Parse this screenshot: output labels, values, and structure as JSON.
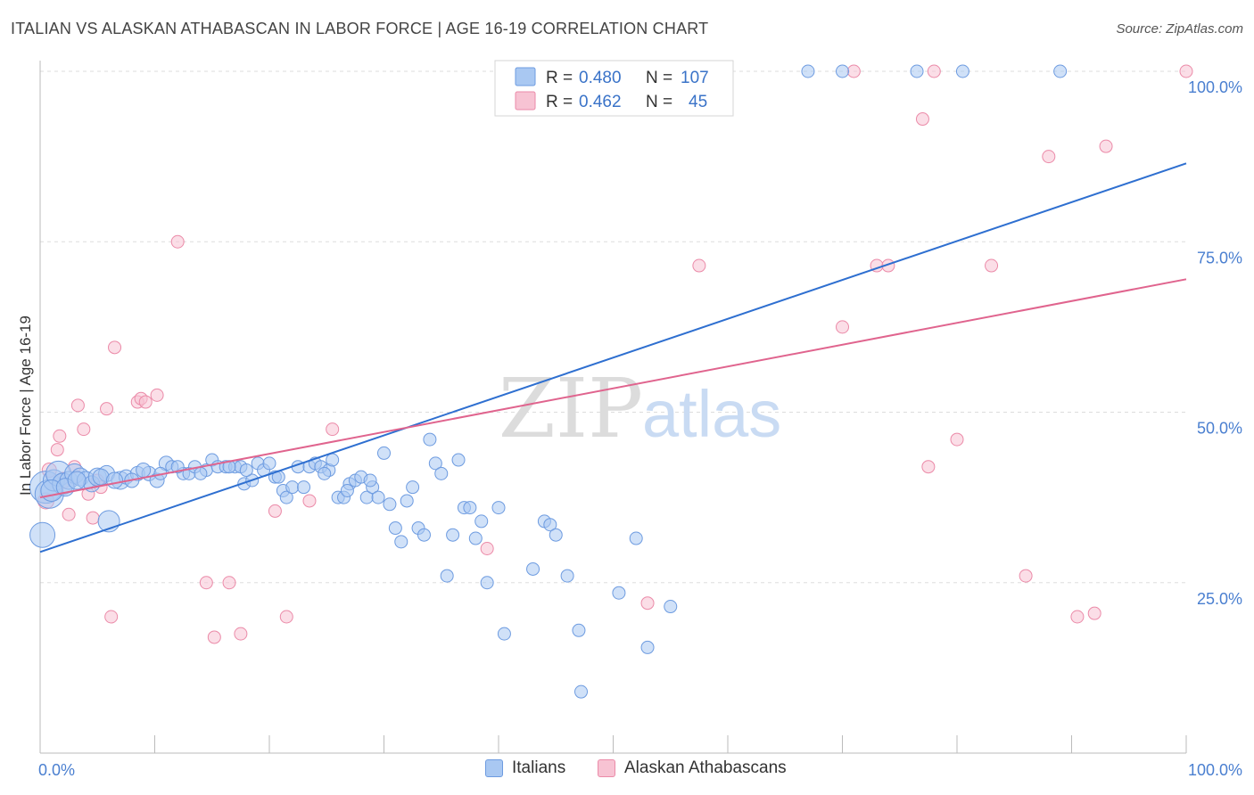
{
  "header": {
    "title": "ITALIAN VS ALASKAN ATHABASCAN IN LABOR FORCE | AGE 16-19 CORRELATION CHART",
    "source": "Source: ZipAtlas.com"
  },
  "watermark": {
    "zip": "ZIP",
    "atlas": "atlas"
  },
  "colors": {
    "blue_fill": "#a9c8f2",
    "blue_stroke": "#6d9be0",
    "blue_line": "#2e6fd0",
    "pink_fill": "#f7c3d3",
    "pink_stroke": "#eb8aa8",
    "pink_line": "#e0648e",
    "grid": "#dddddd",
    "axis_text": "#4a7fd0"
  },
  "stats_legend": [
    {
      "r_label": "R =",
      "r_value": "0.480",
      "n_label": "N =",
      "n_value": "107"
    },
    {
      "r_label": "R =",
      "r_value": "0.462",
      "n_label": "N =",
      "n_value": "45"
    }
  ],
  "bottom_legend": [
    "Italians",
    "Alaskan Athabascans"
  ],
  "chart_data": {
    "type": "scatter",
    "title": "ITALIAN VS ALASKAN ATHABASCAN IN LABOR FORCE | AGE 16-19 CORRELATION CHART",
    "xlabel": "",
    "ylabel": "In Labor Force | Age 16-19",
    "xlim": [
      0,
      100
    ],
    "ylim": [
      0,
      100
    ],
    "x_tick_labels": [
      "0.0%",
      "100.0%"
    ],
    "y_tick_labels": [
      "25.0%",
      "50.0%",
      "75.0%",
      "100.0%"
    ],
    "y_ticks": [
      25,
      50,
      75,
      100
    ],
    "grid": true,
    "legend_placement": "top-center",
    "series": [
      {
        "name": "Italians",
        "r": 0.48,
        "n": 107,
        "trend": [
          [
            0,
            29.5
          ],
          [
            100,
            86.5
          ]
        ],
        "points": [
          [
            0.2,
            32,
            14
          ],
          [
            0.5,
            39,
            18
          ],
          [
            0.8,
            38,
            16
          ],
          [
            1.2,
            40,
            12
          ],
          [
            1.6,
            41,
            14
          ],
          [
            2.0,
            39.5,
            12
          ],
          [
            2.5,
            40,
            10
          ],
          [
            3.0,
            41,
            11
          ],
          [
            3.5,
            40.5,
            10
          ],
          [
            4.0,
            40,
            10
          ],
          [
            4.5,
            39.5,
            9
          ],
          [
            5.0,
            40.5,
            10
          ],
          [
            5.8,
            41,
            9
          ],
          [
            6.0,
            34,
            12
          ],
          [
            7.0,
            40,
            10
          ],
          [
            7.5,
            40.5,
            8
          ],
          [
            8.5,
            41,
            8
          ],
          [
            9.5,
            41,
            8
          ],
          [
            10.2,
            40,
            8
          ],
          [
            11.0,
            42.5,
            8
          ],
          [
            11.5,
            42,
            7
          ],
          [
            12.5,
            41,
            7
          ],
          [
            13.0,
            41,
            7
          ],
          [
            13.5,
            42,
            7
          ],
          [
            14.5,
            41.5,
            7
          ],
          [
            15.0,
            43,
            7
          ],
          [
            15.5,
            42,
            7
          ],
          [
            16.2,
            42,
            7
          ],
          [
            17.0,
            42,
            7
          ],
          [
            17.5,
            42,
            7
          ],
          [
            17.8,
            39.5,
            7
          ],
          [
            18.5,
            40,
            7
          ],
          [
            19.0,
            42.5,
            7
          ],
          [
            19.5,
            41.5,
            7
          ],
          [
            20.0,
            42.5,
            7
          ],
          [
            20.5,
            40.5,
            7
          ],
          [
            21.2,
            38.5,
            7
          ],
          [
            21.5,
            37.5,
            7
          ],
          [
            22.0,
            39,
            7
          ],
          [
            22.5,
            42,
            7
          ],
          [
            23.0,
            39,
            7
          ],
          [
            23.5,
            42,
            7
          ],
          [
            24.0,
            42.5,
            7
          ],
          [
            24.5,
            42,
            7
          ],
          [
            25.2,
            41.5,
            7
          ],
          [
            25.5,
            43,
            7
          ],
          [
            26.0,
            37.5,
            7
          ],
          [
            26.5,
            37.5,
            7
          ],
          [
            27.0,
            39.5,
            7
          ],
          [
            27.5,
            40,
            7
          ],
          [
            28.0,
            40.5,
            7
          ],
          [
            28.5,
            37.5,
            7
          ],
          [
            29.0,
            39,
            7
          ],
          [
            29.5,
            37.5,
            7
          ],
          [
            30.0,
            44,
            7
          ],
          [
            31.0,
            33,
            7
          ],
          [
            31.5,
            31,
            7
          ],
          [
            32.0,
            37,
            7
          ],
          [
            32.5,
            39,
            7
          ],
          [
            33.0,
            33,
            7
          ],
          [
            33.5,
            32,
            7
          ],
          [
            34.0,
            46,
            7
          ],
          [
            34.5,
            42.5,
            7
          ],
          [
            35.0,
            41,
            7
          ],
          [
            35.5,
            26,
            7
          ],
          [
            36.0,
            32,
            7
          ],
          [
            36.5,
            43,
            7
          ],
          [
            37.0,
            36,
            7
          ],
          [
            37.5,
            36,
            7
          ],
          [
            38.0,
            31.5,
            7
          ],
          [
            38.5,
            34,
            7
          ],
          [
            39.0,
            25,
            7
          ],
          [
            40.0,
            36,
            7
          ],
          [
            40.5,
            17.5,
            7
          ],
          [
            41.0,
            94.5,
            7
          ],
          [
            43.0,
            27,
            7
          ],
          [
            44.0,
            34,
            7
          ],
          [
            44.5,
            33.5,
            7
          ],
          [
            45.0,
            32,
            7
          ],
          [
            46.0,
            26,
            7
          ],
          [
            47.0,
            18,
            7
          ],
          [
            47.2,
            9,
            7
          ],
          [
            50.5,
            23.5,
            7
          ],
          [
            52.0,
            31.5,
            7
          ],
          [
            53.0,
            15.5,
            7
          ],
          [
            55.0,
            21.5,
            7
          ],
          [
            41.5,
            100,
            7
          ],
          [
            44.0,
            100,
            7
          ],
          [
            48.0,
            100,
            7
          ],
          [
            52.0,
            100,
            7
          ],
          [
            56.0,
            100,
            7
          ],
          [
            67.0,
            100,
            7
          ],
          [
            70.0,
            100,
            7
          ],
          [
            76.5,
            100,
            7
          ],
          [
            80.5,
            100,
            7
          ],
          [
            89.0,
            100,
            7
          ],
          [
            1.0,
            38.5,
            12
          ],
          [
            2.2,
            39,
            10
          ],
          [
            3.2,
            40,
            10
          ],
          [
            5.3,
            40.5,
            9
          ],
          [
            6.5,
            40,
            9
          ],
          [
            8.0,
            40,
            8
          ],
          [
            9.0,
            41.5,
            8
          ],
          [
            10.5,
            41,
            7
          ],
          [
            12.0,
            42,
            7
          ],
          [
            14.0,
            41,
            7
          ],
          [
            16.5,
            42,
            7
          ],
          [
            18.0,
            41.5,
            7
          ],
          [
            20.8,
            40.5,
            7
          ],
          [
            24.8,
            41,
            7
          ],
          [
            26.8,
            38.5,
            7
          ],
          [
            28.8,
            40,
            7
          ],
          [
            30.5,
            36.5,
            7
          ]
        ]
      },
      {
        "name": "Alaskan Athabascans",
        "r": 0.462,
        "n": 45,
        "trend": [
          [
            0,
            37.5
          ],
          [
            100,
            69.5
          ]
        ],
        "points": [
          [
            0.5,
            37,
            9
          ],
          [
            0.8,
            41.5,
            8
          ],
          [
            1.5,
            44.5,
            7
          ],
          [
            1.7,
            46.5,
            7
          ],
          [
            2.0,
            40,
            9
          ],
          [
            2.5,
            35,
            7
          ],
          [
            3.0,
            42,
            7
          ],
          [
            3.3,
            51,
            7
          ],
          [
            3.8,
            47.5,
            7
          ],
          [
            4.2,
            38,
            7
          ],
          [
            4.6,
            34.5,
            7
          ],
          [
            5.0,
            40,
            7
          ],
          [
            5.3,
            39,
            7
          ],
          [
            5.8,
            50.5,
            7
          ],
          [
            6.2,
            20,
            7
          ],
          [
            6.5,
            59.5,
            7
          ],
          [
            8.5,
            51.5,
            7
          ],
          [
            8.8,
            52,
            7
          ],
          [
            9.2,
            51.5,
            7
          ],
          [
            10.2,
            52.5,
            7
          ],
          [
            12.0,
            75,
            7
          ],
          [
            14.5,
            25,
            7
          ],
          [
            15.2,
            17,
            7
          ],
          [
            16.5,
            25,
            7
          ],
          [
            17.5,
            17.5,
            7
          ],
          [
            20.5,
            35.5,
            7
          ],
          [
            21.5,
            20,
            7
          ],
          [
            23.5,
            37,
            7
          ],
          [
            25.5,
            47.5,
            7
          ],
          [
            39.0,
            30,
            7
          ],
          [
            53.0,
            22,
            7
          ],
          [
            57.5,
            71.5,
            7
          ],
          [
            70.0,
            62.5,
            7
          ],
          [
            71.0,
            100,
            7
          ],
          [
            73.0,
            71.5,
            7
          ],
          [
            74.0,
            71.5,
            7
          ],
          [
            77.0,
            93,
            7
          ],
          [
            77.5,
            42,
            7
          ],
          [
            78.0,
            100,
            7
          ],
          [
            80.0,
            46,
            7
          ],
          [
            83.0,
            71.5,
            7
          ],
          [
            86.0,
            26,
            7
          ],
          [
            88.0,
            87.5,
            7
          ],
          [
            90.5,
            20,
            7
          ],
          [
            92.0,
            20.5,
            7
          ],
          [
            93.0,
            89,
            7
          ],
          [
            100.0,
            100,
            7
          ]
        ]
      }
    ]
  }
}
